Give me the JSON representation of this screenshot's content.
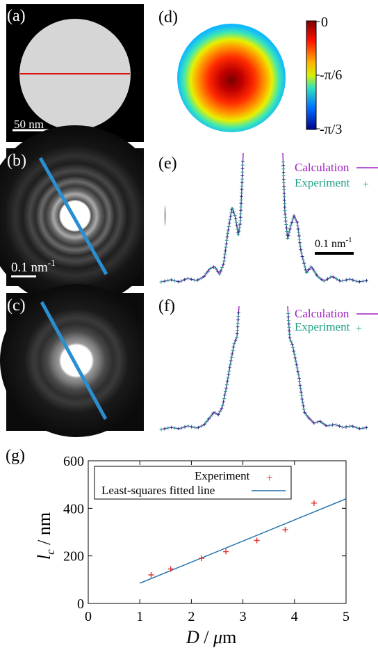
{
  "panels": {
    "a": {
      "label": "(a)",
      "scale": "50 nm"
    },
    "b": {
      "label": "(b)",
      "scale_value": "0.1",
      "scale_unit": "nm",
      "scale_exp": "-1"
    },
    "c": {
      "label": "(c)"
    },
    "d": {
      "label": "(d)",
      "colorbar": {
        "ticks": [
          "0",
          "-π/6",
          "-π/3"
        ],
        "colors": [
          "#7a0000",
          "#ff2000",
          "#ffe000",
          "#30e0c0",
          "#0060ff",
          "#00008a"
        ]
      }
    },
    "e": {
      "label": "(e)",
      "legend_calc": "Calculation",
      "legend_exp": "Experiment",
      "scale_value": "0.1",
      "scale_unit": "nm",
      "scale_exp": "-1"
    },
    "f": {
      "label": "(f)",
      "legend_calc": "Calculation",
      "legend_exp": "Experiment"
    },
    "g": {
      "label": "(g)"
    }
  },
  "colors": {
    "calc": "#a020c0",
    "exp": "#1fa08a",
    "fit": "#1a6ea8",
    "points": "#e53030",
    "redline": "#dd1111",
    "blueline": "#2a8fd0"
  },
  "chart_data": {
    "type": "scatter",
    "xlabel": "D / μm",
    "ylabel": "l_c / nm",
    "xlim": [
      0,
      5
    ],
    "ylim": [
      0,
      600
    ],
    "xticks": [
      0,
      1,
      2,
      3,
      4,
      5
    ],
    "yticks": [
      0,
      200,
      400,
      600
    ],
    "legend_position": "top",
    "series": [
      {
        "name": "Experiment",
        "kind": "points",
        "x": [
          1.22,
          1.6,
          2.2,
          2.67,
          3.27,
          3.82,
          4.38
        ],
        "y": [
          120,
          145,
          190,
          218,
          265,
          310,
          422
        ]
      },
      {
        "name": "Least-squares fitted line",
        "kind": "line",
        "x": [
          1.0,
          5.0
        ],
        "y": [
          85,
          440
        ]
      }
    ]
  }
}
